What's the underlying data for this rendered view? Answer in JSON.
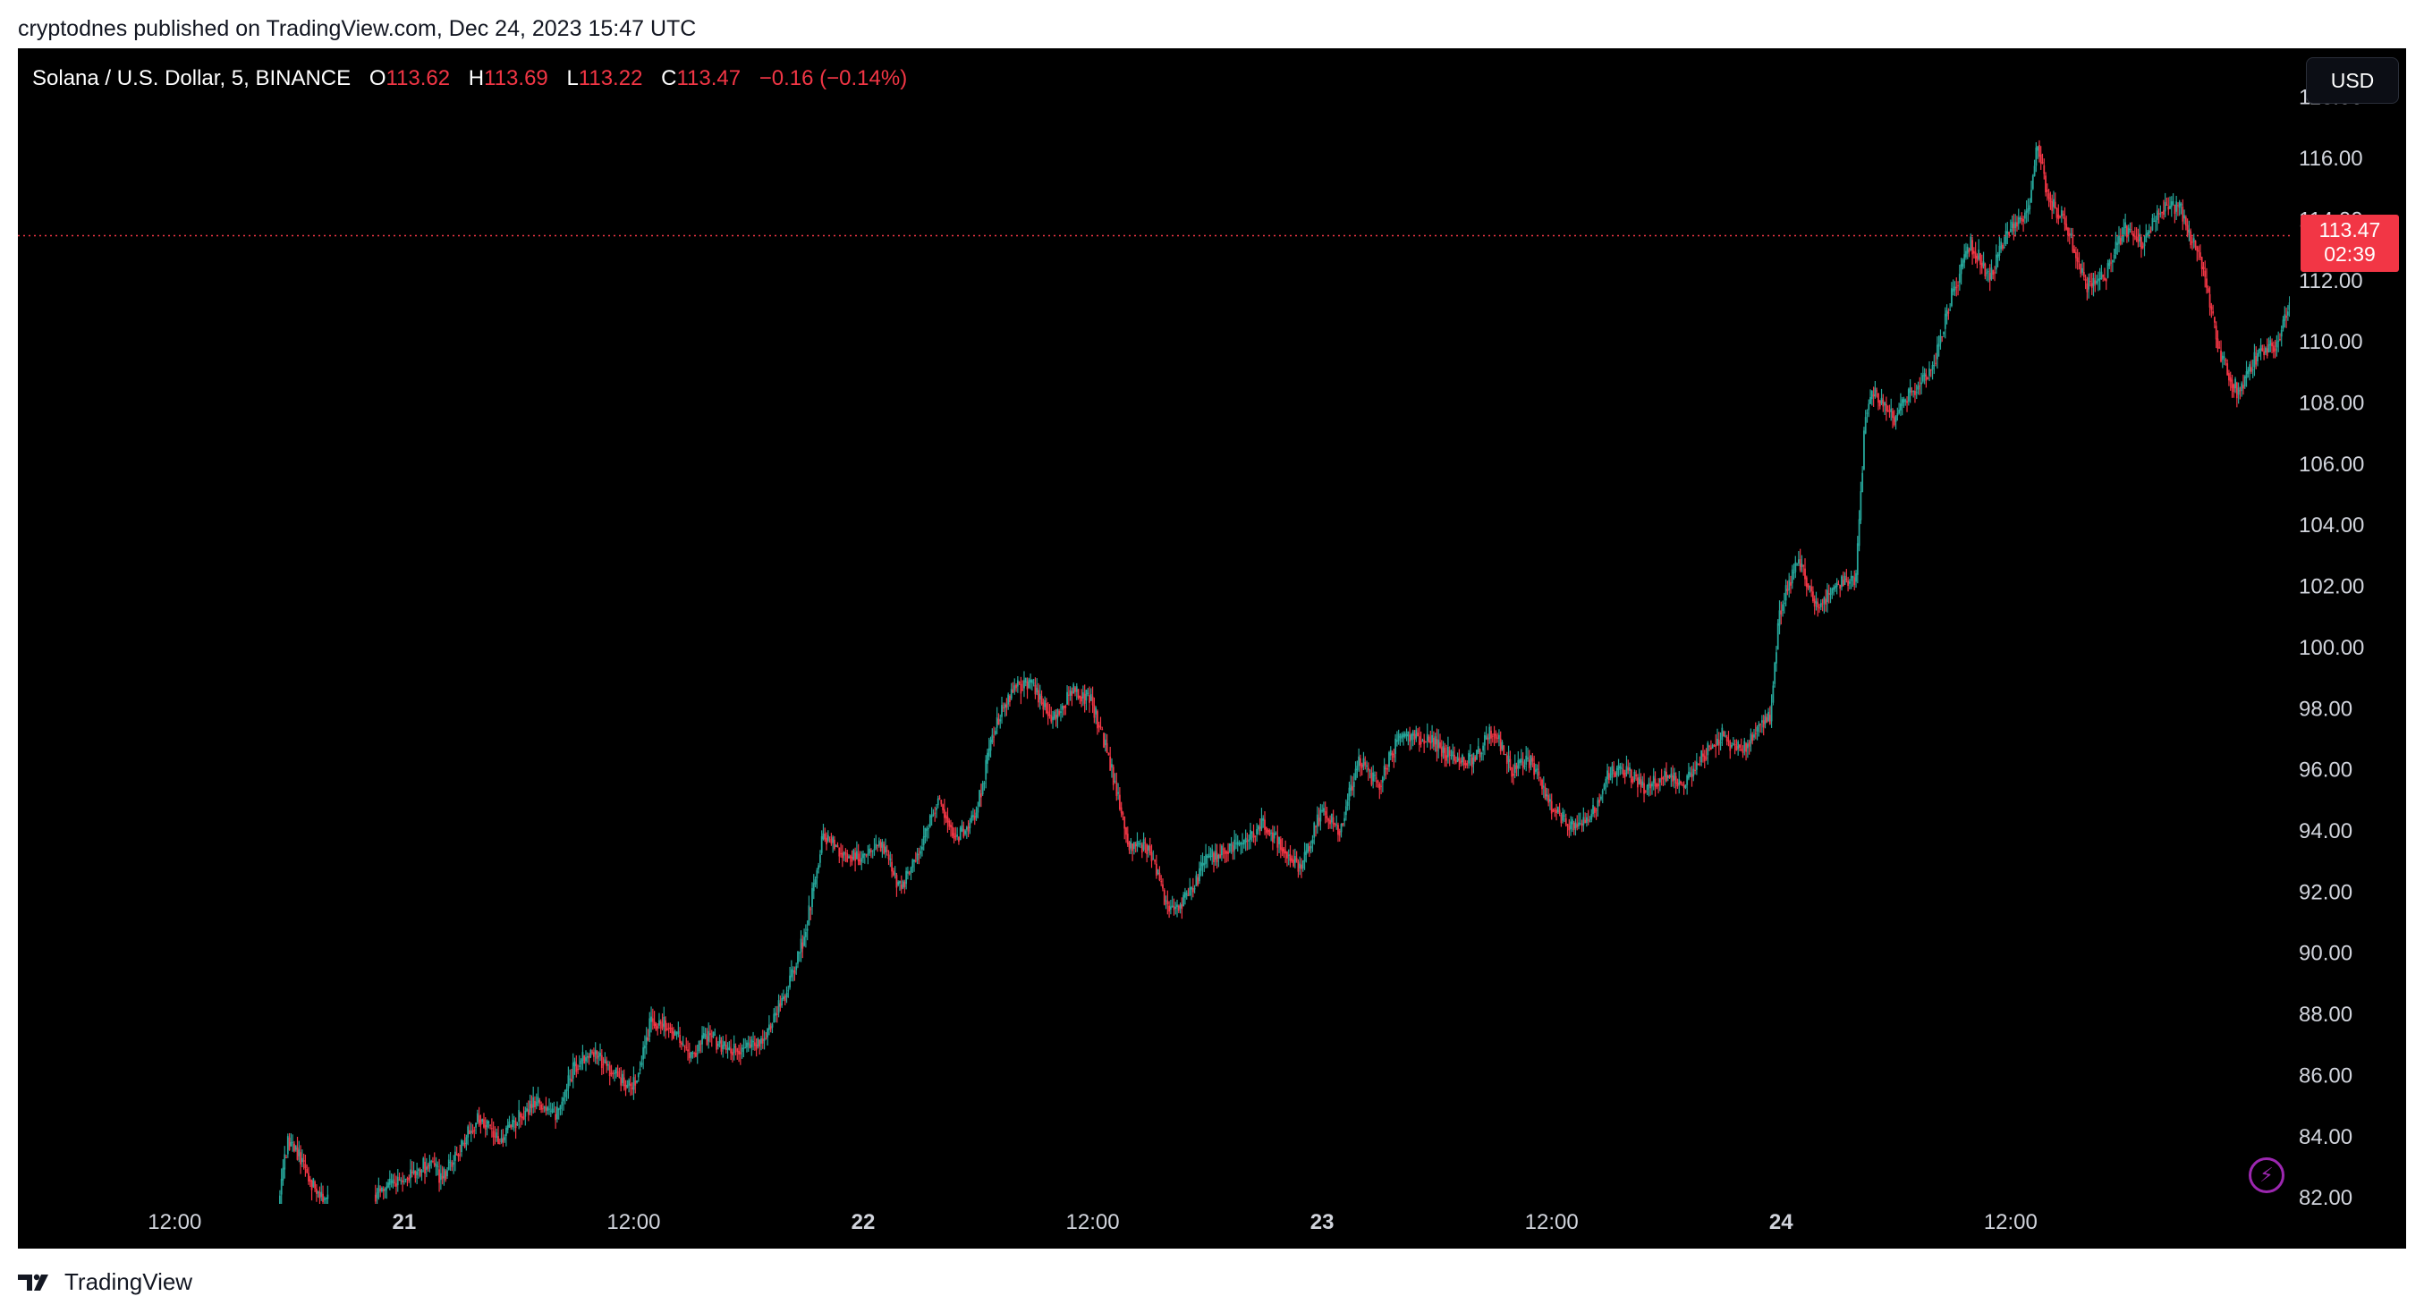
{
  "publish_line": "cryptodnes published on TradingView.com, Dec 24, 2023 15:47 UTC",
  "legend": {
    "symbol": "Solana / U.S. Dollar, 5, BINANCE",
    "o_label": "O",
    "o_value": "113.62",
    "h_label": "H",
    "h_value": "113.69",
    "l_label": "L",
    "l_value": "113.22",
    "c_label": "C",
    "c_value": "113.47",
    "change": "−0.16 (−0.14%)"
  },
  "currency_button": "USD",
  "last_price": {
    "value": "113.47",
    "countdown": "02:39"
  },
  "footer_brand": "TradingView",
  "colors": {
    "up": "#26a69a",
    "down": "#f23645",
    "background": "#000000",
    "axis_text": "#d1d4dc",
    "price_line": "#f23645"
  },
  "chart_data": {
    "type": "candlestick",
    "interval_minutes": 5,
    "ylim": [
      81.8,
      119.6
    ],
    "y_ticks": [
      118,
      116,
      114,
      112,
      110,
      108,
      106,
      104,
      102,
      100,
      98,
      96,
      94,
      92,
      90,
      88,
      86,
      84,
      82
    ],
    "y_tick_labels": [
      "118.00",
      "116.00",
      "114.00",
      "112.00",
      "110.00",
      "108.00",
      "106.00",
      "104.00",
      "102.00",
      "100.00",
      "98.00",
      "96.00",
      "94.00",
      "92.00",
      "90.00",
      "88.00",
      "86.00",
      "84.00",
      "82.00"
    ],
    "x_domain_hours": [
      -8.2,
      110.6
    ],
    "x_ticks": [
      {
        "hour": 0,
        "label": "12:00"
      },
      {
        "hour": 12,
        "label": "21"
      },
      {
        "hour": 24,
        "label": "12:00"
      },
      {
        "hour": 36,
        "label": "22"
      },
      {
        "hour": 48,
        "label": "12:00"
      },
      {
        "hour": 60,
        "label": "23"
      },
      {
        "hour": 72,
        "label": "12:00"
      },
      {
        "hour": 84,
        "label": "24"
      },
      {
        "hour": 96,
        "label": "12:00"
      }
    ],
    "price_path": [
      [
        5.5,
        81.8
      ],
      [
        6.0,
        83.9
      ],
      [
        6.5,
        83.5
      ],
      [
        7.0,
        82.8
      ],
      [
        7.5,
        82.2
      ],
      [
        8.0,
        81.9
      ],
      [
        10.5,
        82.1
      ],
      [
        11.5,
        82.4
      ],
      [
        12.5,
        82.8
      ],
      [
        13.5,
        83.2
      ],
      [
        14.0,
        82.6
      ],
      [
        15.0,
        83.6
      ],
      [
        16.0,
        84.7
      ],
      [
        17.0,
        83.8
      ],
      [
        18.0,
        84.6
      ],
      [
        19.0,
        85.1
      ],
      [
        20.0,
        84.6
      ],
      [
        21.0,
        86.3
      ],
      [
        22.0,
        86.8
      ],
      [
        23.0,
        86.1
      ],
      [
        24.0,
        85.5
      ],
      [
        25.0,
        87.8
      ],
      [
        26.0,
        87.6
      ],
      [
        27.0,
        86.6
      ],
      [
        28.0,
        87.3
      ],
      [
        29.0,
        86.8
      ],
      [
        30.0,
        86.9
      ],
      [
        31.0,
        87.3
      ],
      [
        32.0,
        88.7
      ],
      [
        33.0,
        90.5
      ],
      [
        34.0,
        93.9
      ],
      [
        35.0,
        93.3
      ],
      [
        36.0,
        93.1
      ],
      [
        37.0,
        93.6
      ],
      [
        38.0,
        92.1
      ],
      [
        39.0,
        93.3
      ],
      [
        40.0,
        95.1
      ],
      [
        41.0,
        93.7
      ],
      [
        42.0,
        94.6
      ],
      [
        43.0,
        97.5
      ],
      [
        44.0,
        98.8
      ],
      [
        45.0,
        98.7
      ],
      [
        46.0,
        97.6
      ],
      [
        47.0,
        98.6
      ],
      [
        48.0,
        98.3
      ],
      [
        49.0,
        96.2
      ],
      [
        50.0,
        93.5
      ],
      [
        51.0,
        93.5
      ],
      [
        52.0,
        91.5
      ],
      [
        52.5,
        91.5
      ],
      [
        53.0,
        91.8
      ],
      [
        54.0,
        93.0
      ],
      [
        55.0,
        93.4
      ],
      [
        56.0,
        93.5
      ],
      [
        57.0,
        94.3
      ],
      [
        58.0,
        93.5
      ],
      [
        59.0,
        92.8
      ],
      [
        60.0,
        94.6
      ],
      [
        61.0,
        94.1
      ],
      [
        62.0,
        96.3
      ],
      [
        63.0,
        95.5
      ],
      [
        64.0,
        96.9
      ],
      [
        65.0,
        97.1
      ],
      [
        66.0,
        96.9
      ],
      [
        67.0,
        96.3
      ],
      [
        68.0,
        96.3
      ],
      [
        69.0,
        97.3
      ],
      [
        70.0,
        96.0
      ],
      [
        71.0,
        96.3
      ],
      [
        72.0,
        94.9
      ],
      [
        73.0,
        94.1
      ],
      [
        74.0,
        94.3
      ],
      [
        75.0,
        95.8
      ],
      [
        76.0,
        96.0
      ],
      [
        77.0,
        95.4
      ],
      [
        78.0,
        95.9
      ],
      [
        79.0,
        95.4
      ],
      [
        80.0,
        96.5
      ],
      [
        81.0,
        97.1
      ],
      [
        82.0,
        96.6
      ],
      [
        83.0,
        97.6
      ],
      [
        83.5,
        97.7
      ],
      [
        84.0,
        101.2
      ],
      [
        85.0,
        102.9
      ],
      [
        86.0,
        101.3
      ],
      [
        87.0,
        102.0
      ],
      [
        88.0,
        102.3
      ],
      [
        88.5,
        107.8
      ],
      [
        89.0,
        108.3
      ],
      [
        90.0,
        107.5
      ],
      [
        91.0,
        108.4
      ],
      [
        92.0,
        109.2
      ],
      [
        93.0,
        111.5
      ],
      [
        94.0,
        113.2
      ],
      [
        95.0,
        112.1
      ],
      [
        96.0,
        113.7
      ],
      [
        97.0,
        114.3
      ],
      [
        97.5,
        116.5
      ],
      [
        98.0,
        114.8
      ],
      [
        99.0,
        113.8
      ],
      [
        100.0,
        111.8
      ],
      [
        101.0,
        112.1
      ],
      [
        102.0,
        113.7
      ],
      [
        103.0,
        113.2
      ],
      [
        104.0,
        114.4
      ],
      [
        105.0,
        114.3
      ],
      [
        105.5,
        113.4
      ],
      [
        106.0,
        112.8
      ],
      [
        107.0,
        109.6
      ],
      [
        108.0,
        108.3
      ],
      [
        109.0,
        109.6
      ],
      [
        110.0,
        110.0
      ],
      [
        111.0,
        111.9
      ],
      [
        112.0,
        112.6
      ],
      [
        112.5,
        112.2
      ],
      [
        113.0,
        113.6
      ],
      [
        113.5,
        114.4
      ],
      [
        114.0,
        113.8
      ],
      [
        114.5,
        113.47
      ]
    ]
  }
}
